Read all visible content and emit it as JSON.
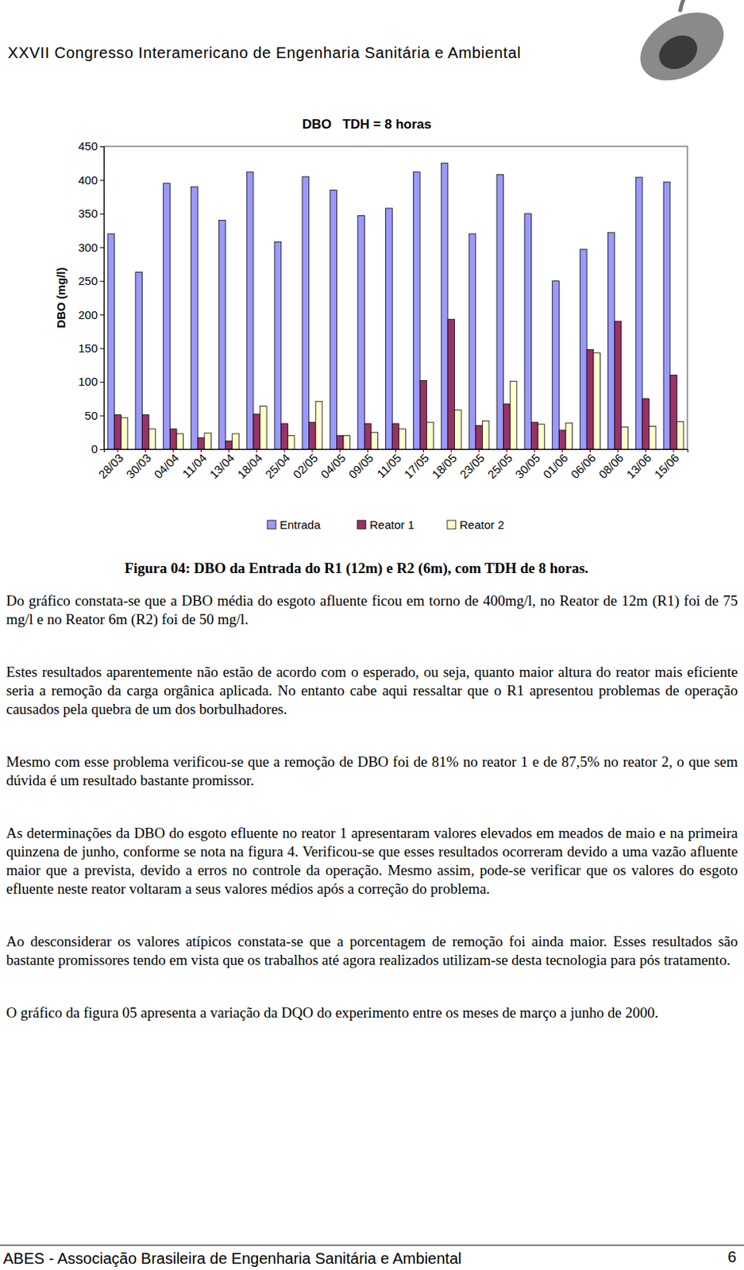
{
  "header": {
    "title": "XXVII Congresso Interamericano de Engenharia Sanitária e Ambiental"
  },
  "chart_data": {
    "type": "bar",
    "title": "DBO   TDH = 8 horas",
    "y_label": "DBO (mg/l)",
    "categories": [
      "28/03",
      "30/03",
      "04/04",
      "11/04",
      "13/04",
      "18/04",
      "25/04",
      "02/05",
      "04/05",
      "09/05",
      "11/05",
      "17/05",
      "18/05",
      "23/05",
      "25/05",
      "30/05",
      "01/06",
      "06/06",
      "08/06",
      "13/06",
      "15/06"
    ],
    "series": [
      {
        "name": "Entrada",
        "color": "#9999ff",
        "values": [
          320,
          263,
          395,
          390,
          340,
          412,
          308,
          405,
          385,
          347,
          358,
          412,
          425,
          320,
          408,
          350,
          250,
          297,
          322,
          404,
          397
        ]
      },
      {
        "name": "Reator 1",
        "color": "#993366",
        "values": [
          51,
          51,
          30,
          17,
          12,
          52,
          38,
          40,
          20,
          38,
          38,
          102,
          193,
          35,
          67,
          40,
          28,
          148,
          190,
          75,
          110
        ]
      },
      {
        "name": "Reator 2",
        "color": "#ffffcc",
        "values": [
          47,
          30,
          23,
          24,
          23,
          64,
          20,
          71,
          20,
          25,
          30,
          40,
          58,
          42,
          101,
          37,
          39,
          143,
          33,
          34,
          41
        ]
      }
    ],
    "ylim": [
      0,
      450
    ],
    "yticks": [
      0,
      50,
      100,
      150,
      200,
      250,
      300,
      350,
      400,
      450
    ],
    "grid": false,
    "legend": "bottom"
  },
  "caption": "Figura 04: DBO da Entrada do R1 (12m) e R2 (6m), com TDH de 8 horas.",
  "paragraphs": [
    "Do gráfico constata-se que a DBO média do esgoto afluente ficou em torno de 400mg/l, no Reator de 12m (R1) foi de 75 mg/l e no Reator 6m (R2) foi de 50 mg/l.",
    "Estes resultados aparentemente não estão de acordo com o esperado, ou seja, quanto maior altura do reator mais eficiente seria a remoção da carga orgânica aplicada. No entanto cabe aqui ressaltar que o R1 apresentou problemas de operação causados pela quebra de um dos borbulhadores.",
    "Mesmo com esse problema verificou-se que a remoção de DBO foi de 81% no reator 1 e de 87,5% no reator 2, o que sem dúvida é um resultado bastante promissor.",
    "As determinações da DBO do esgoto efluente no reator 1 apresentaram valores elevados em meados de maio e na primeira quinzena de junho, conforme se nota na figura 4. Verificou-se que esses resultados ocorreram devido a uma vazão afluente maior que a prevista, devido a erros no controle da operação. Mesmo assim, pode-se verificar que os valores do esgoto efluente neste reator voltaram a seus valores médios após a correção do problema.",
    "Ao desconsiderar os valores atípicos constata-se que a porcentagem de remoção foi ainda maior. Esses resultados são bastante promissores tendo em vista que os trabalhos até agora realizados utilizam-se desta tecnologia para pós tratamento.",
    "O gráfico da figura 05 apresenta a variação da DQO do experimento entre os meses de março a junho de 2000."
  ],
  "footer": {
    "text": "ABES - Associação Brasileira de Engenharia Sanitária e Ambiental",
    "page": 6
  }
}
